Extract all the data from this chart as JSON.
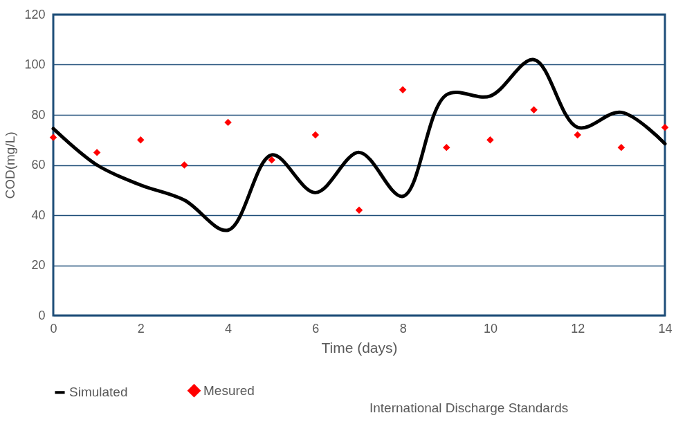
{
  "chart_data": {
    "type": "line",
    "xlabel": "Time (days)",
    "ylabel": "COD(mg/L)",
    "xlim": [
      0,
      14
    ],
    "xticks": [
      0,
      2,
      4,
      6,
      8,
      10,
      12,
      14
    ],
    "ylim": [
      0,
      120
    ],
    "yticks": [
      0,
      20,
      40,
      60,
      80,
      100,
      120
    ],
    "grid": "y",
    "legend": "bottom",
    "annotations": [
      "International Discharge Standards"
    ],
    "series": [
      {
        "name": "Simulated",
        "color": "#000000",
        "x": [
          0,
          1,
          2,
          3,
          4,
          5,
          6,
          7,
          8,
          9,
          10,
          11,
          12,
          13,
          14
        ],
        "values": [
          74.5,
          60,
          52,
          46,
          34,
          64,
          49,
          65,
          47.5,
          88,
          87.5,
          102,
          75,
          81,
          68.5
        ]
      },
      {
        "name": "Mesured",
        "type": "scatter",
        "marker": "diamond",
        "color": "#ff0000",
        "x": [
          0,
          1,
          2,
          3,
          4,
          5,
          6,
          7,
          8,
          9,
          10,
          11,
          12,
          13,
          14
        ],
        "values": [
          71,
          65,
          70,
          60,
          77,
          62,
          72,
          42,
          90,
          67,
          70,
          82,
          72,
          67,
          75
        ]
      }
    ]
  }
}
